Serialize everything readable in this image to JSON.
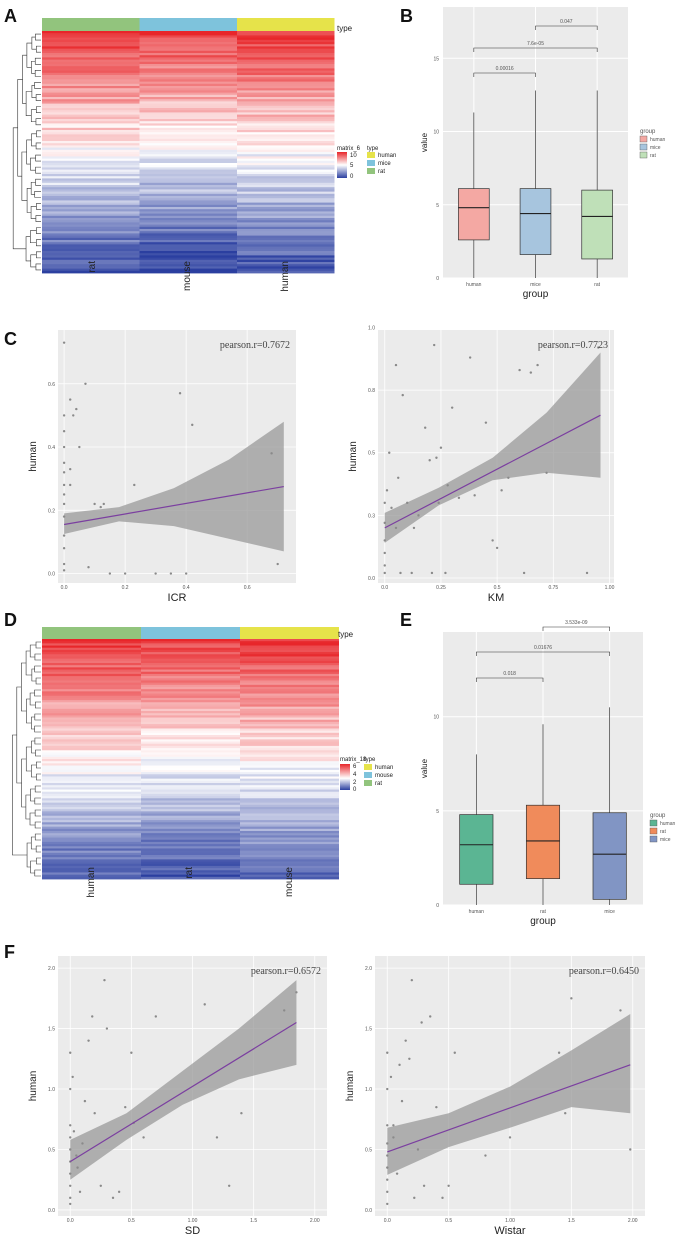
{
  "figure": {
    "panel_labels": [
      "A",
      "B",
      "C",
      "D",
      "E",
      "F"
    ]
  },
  "heatmap_A": {
    "columns": [
      "rat",
      "mouse",
      "human"
    ],
    "column_colors": [
      "#92c47d",
      "#7ec3dc",
      "#e6e34a"
    ],
    "annotation_title": "type",
    "legend_matrix_title": "matrix_6",
    "legend_ticks": [
      "10",
      "5",
      "0"
    ],
    "legend_type_title": "type",
    "legend_types": [
      {
        "label": "human",
        "color": "#e6e34a"
      },
      {
        "label": "mice",
        "color": "#7ec3dc"
      },
      {
        "label": "rat",
        "color": "#92c47d"
      }
    ]
  },
  "heatmap_D": {
    "columns": [
      "human",
      "rat",
      "mouse"
    ],
    "column_colors": [
      "#92c47d",
      "#7ec3dc",
      "#e6e34a"
    ],
    "annotation_title": "type",
    "legend_matrix_title": "matrix_18",
    "legend_ticks": [
      "6",
      "4",
      "2",
      "0"
    ],
    "legend_type_title": "type",
    "legend_types": [
      {
        "label": "human",
        "color": "#e6e34a"
      },
      {
        "label": "mouse",
        "color": "#7ec3dc"
      },
      {
        "label": "rat",
        "color": "#92c47d"
      }
    ]
  },
  "chart_data": [
    {
      "id": "B",
      "type": "box",
      "xlabel": "group",
      "ylabel": "value",
      "categories": [
        "human",
        "mice",
        "rat"
      ],
      "colors": [
        "#f4a8a3",
        "#a7c5de",
        "#bfe0b8"
      ],
      "ylim": [
        0,
        18.5
      ],
      "yticks": [
        0,
        5,
        10,
        15
      ],
      "boxes": [
        {
          "q1": 2.6,
          "median": 4.8,
          "q3": 6.1,
          "whisker_low": 0.0,
          "whisker_high": 11.3
        },
        {
          "q1": 1.6,
          "median": 4.4,
          "q3": 6.1,
          "whisker_low": 0.0,
          "whisker_high": 12.8
        },
        {
          "q1": 1.3,
          "median": 4.2,
          "q3": 6.0,
          "whisker_low": 0.0,
          "whisker_high": 12.8
        }
      ],
      "comparisons": [
        {
          "pair": [
            0,
            1
          ],
          "label": "0.00016"
        },
        {
          "pair": [
            0,
            2
          ],
          "label": "7.6e-05"
        },
        {
          "pair": [
            1,
            2
          ],
          "label": "0.047"
        }
      ],
      "legend_title": "group",
      "legend": [
        "human",
        "mice",
        "rat"
      ]
    },
    {
      "id": "C1",
      "type": "scatter",
      "xlabel": "ICR",
      "ylabel": "human",
      "annotation": "pearson.r=0.7672",
      "xlim": [
        -0.02,
        0.76
      ],
      "ylim": [
        -0.03,
        0.77
      ],
      "xticks": [
        0.0,
        0.2,
        0.4,
        0.6
      ],
      "yticks": [
        0.0,
        0.2,
        0.4,
        0.6
      ],
      "points": [
        [
          0,
          0.73
        ],
        [
          0,
          0.5
        ],
        [
          0,
          0.45
        ],
        [
          0,
          0.4
        ],
        [
          0,
          0.35
        ],
        [
          0,
          0.32
        ],
        [
          0,
          0.28
        ],
        [
          0,
          0.25
        ],
        [
          0,
          0.22
        ],
        [
          0,
          0.18
        ],
        [
          0,
          0.12
        ],
        [
          0,
          0.08
        ],
        [
          0,
          0.03
        ],
        [
          0,
          0.01
        ],
        [
          0.02,
          0.55
        ],
        [
          0.03,
          0.5
        ],
        [
          0.04,
          0.52
        ],
        [
          0.05,
          0.4
        ],
        [
          0.07,
          0.6
        ],
        [
          0.08,
          0.02
        ],
        [
          0.1,
          0.22
        ],
        [
          0.12,
          0.21
        ],
        [
          0.13,
          0.22
        ],
        [
          0.15,
          0.0
        ],
        [
          0.2,
          0.0
        ],
        [
          0.23,
          0.28
        ],
        [
          0.3,
          0.0
        ],
        [
          0.35,
          0.0
        ],
        [
          0.38,
          0.57
        ],
        [
          0.4,
          0.0
        ],
        [
          0.42,
          0.47
        ],
        [
          0.68,
          0.38
        ],
        [
          0.7,
          0.03
        ],
        [
          0.02,
          0.28
        ],
        [
          0.02,
          0.33
        ]
      ],
      "fit": {
        "x0": 0.0,
        "y0": 0.155,
        "x1": 0.72,
        "y1": 0.275
      },
      "band": {
        "upper": [
          [
            0.0,
            0.19
          ],
          [
            0.18,
            0.21
          ],
          [
            0.36,
            0.27
          ],
          [
            0.54,
            0.36
          ],
          [
            0.72,
            0.48
          ]
        ],
        "lower": [
          [
            0.0,
            0.125
          ],
          [
            0.18,
            0.165
          ],
          [
            0.36,
            0.15
          ],
          [
            0.54,
            0.11
          ],
          [
            0.72,
            0.07
          ]
        ]
      }
    },
    {
      "id": "C2",
      "type": "scatter",
      "xlabel": "KM",
      "ylabel": "human",
      "annotation": "pearson.r=0.7723",
      "xlim": [
        -0.03,
        1.02
      ],
      "ylim": [
        -0.02,
        0.99
      ],
      "xticks": [
        0.0,
        0.25,
        0.5,
        0.75,
        1.0
      ],
      "yticks": [
        0.0,
        0.25,
        0.5,
        0.75,
        1.0
      ],
      "points": [
        [
          0,
          0.3
        ],
        [
          0,
          0.22
        ],
        [
          0,
          0.15
        ],
        [
          0,
          0.1
        ],
        [
          0,
          0.05
        ],
        [
          0,
          0.02
        ],
        [
          0.01,
          0.35
        ],
        [
          0.02,
          0.5
        ],
        [
          0.03,
          0.28
        ],
        [
          0.05,
          0.2
        ],
        [
          0.05,
          0.85
        ],
        [
          0.06,
          0.4
        ],
        [
          0.07,
          0.02
        ],
        [
          0.08,
          0.73
        ],
        [
          0.1,
          0.3
        ],
        [
          0.12,
          0.02
        ],
        [
          0.13,
          0.2
        ],
        [
          0.15,
          0.25
        ],
        [
          0.18,
          0.6
        ],
        [
          0.2,
          0.47
        ],
        [
          0.21,
          0.02
        ],
        [
          0.22,
          0.93
        ],
        [
          0.23,
          0.48
        ],
        [
          0.24,
          0.3
        ],
        [
          0.25,
          0.52
        ],
        [
          0.27,
          0.02
        ],
        [
          0.28,
          0.37
        ],
        [
          0.3,
          0.68
        ],
        [
          0.33,
          0.32
        ],
        [
          0.38,
          0.88
        ],
        [
          0.4,
          0.33
        ],
        [
          0.45,
          0.62
        ],
        [
          0.48,
          0.15
        ],
        [
          0.5,
          0.12
        ],
        [
          0.52,
          0.35
        ],
        [
          0.55,
          0.4
        ],
        [
          0.6,
          0.83
        ],
        [
          0.62,
          0.02
        ],
        [
          0.65,
          0.82
        ],
        [
          0.68,
          0.85
        ],
        [
          0.72,
          0.42
        ],
        [
          0.9,
          0.02
        ],
        [
          0.95,
          0.92
        ]
      ],
      "fit": {
        "x0": 0.0,
        "y0": 0.2,
        "x1": 0.96,
        "y1": 0.65
      },
      "band": {
        "upper": [
          [
            0.0,
            0.26
          ],
          [
            0.24,
            0.36
          ],
          [
            0.48,
            0.48
          ],
          [
            0.72,
            0.66
          ],
          [
            0.96,
            0.9
          ]
        ],
        "lower": [
          [
            0.0,
            0.14
          ],
          [
            0.24,
            0.29
          ],
          [
            0.48,
            0.39
          ],
          [
            0.72,
            0.42
          ],
          [
            0.96,
            0.4
          ]
        ]
      }
    },
    {
      "id": "E",
      "type": "box",
      "xlabel": "group",
      "ylabel": "value",
      "categories": [
        "human",
        "rat",
        "mice"
      ],
      "colors": [
        "#5bb593",
        "#f08b5b",
        "#8195c4"
      ],
      "ylim": [
        0,
        14.5
      ],
      "yticks": [
        0,
        5,
        10
      ],
      "boxes": [
        {
          "q1": 1.1,
          "median": 3.2,
          "q3": 4.8,
          "whisker_low": 0.0,
          "whisker_high": 8.0
        },
        {
          "q1": 1.4,
          "median": 3.4,
          "q3": 5.3,
          "whisker_low": 0.0,
          "whisker_high": 9.6
        },
        {
          "q1": 0.3,
          "median": 2.7,
          "q3": 4.9,
          "whisker_low": 0.0,
          "whisker_high": 10.5
        }
      ],
      "comparisons": [
        {
          "pair": [
            0,
            1
          ],
          "label": "0.018"
        },
        {
          "pair": [
            0,
            2
          ],
          "label": "0.01676"
        },
        {
          "pair": [
            1,
            2
          ],
          "label": "3.533e-09"
        }
      ],
      "legend_title": "group",
      "legend": [
        "human",
        "rat",
        "mice"
      ]
    },
    {
      "id": "F1",
      "type": "scatter",
      "xlabel": "SD",
      "ylabel": "human",
      "annotation": "pearson.r=0.6572",
      "xlim": [
        -0.1,
        2.1
      ],
      "ylim": [
        -0.05,
        2.1
      ],
      "xticks": [
        0.0,
        0.5,
        1.0,
        1.5,
        2.0
      ],
      "yticks": [
        0.0,
        0.5,
        1.0,
        1.5,
        2.0
      ],
      "points": [
        [
          0,
          1.3
        ],
        [
          0,
          1.0
        ],
        [
          0,
          0.7
        ],
        [
          0,
          0.6
        ],
        [
          0,
          0.5
        ],
        [
          0,
          0.4
        ],
        [
          0,
          0.3
        ],
        [
          0,
          0.2
        ],
        [
          0,
          0.1
        ],
        [
          0,
          0.05
        ],
        [
          0.02,
          1.1
        ],
        [
          0.03,
          0.65
        ],
        [
          0.05,
          0.45
        ],
        [
          0.06,
          0.35
        ],
        [
          0.08,
          0.15
        ],
        [
          0.1,
          0.55
        ],
        [
          0.12,
          0.9
        ],
        [
          0.15,
          1.4
        ],
        [
          0.18,
          1.6
        ],
        [
          0.2,
          0.8
        ],
        [
          0.25,
          0.2
        ],
        [
          0.28,
          1.9
        ],
        [
          0.3,
          1.5
        ],
        [
          0.35,
          0.1
        ],
        [
          0.4,
          0.15
        ],
        [
          0.45,
          0.85
        ],
        [
          0.5,
          1.3
        ],
        [
          0.52,
          0.72
        ],
        [
          0.6,
          0.6
        ],
        [
          0.7,
          1.6
        ],
        [
          1.1,
          1.7
        ],
        [
          1.2,
          0.6
        ],
        [
          1.3,
          0.2
        ],
        [
          1.4,
          0.8
        ],
        [
          1.75,
          1.65
        ],
        [
          1.85,
          1.8
        ]
      ],
      "fit": {
        "x0": 0.0,
        "y0": 0.4,
        "x1": 1.85,
        "y1": 1.55
      },
      "band": {
        "upper": [
          [
            0.0,
            0.58
          ],
          [
            0.46,
            0.8
          ],
          [
            0.92,
            1.15
          ],
          [
            1.38,
            1.5
          ],
          [
            1.85,
            1.9
          ]
        ],
        "lower": [
          [
            0.0,
            0.25
          ],
          [
            0.46,
            0.58
          ],
          [
            0.92,
            0.87
          ],
          [
            1.38,
            1.08
          ],
          [
            1.85,
            1.2
          ]
        ]
      }
    },
    {
      "id": "F2",
      "type": "scatter",
      "xlabel": "Wistar",
      "ylabel": "human",
      "annotation": "pearson.r=0.6450",
      "xlim": [
        -0.1,
        2.1
      ],
      "ylim": [
        -0.05,
        2.1
      ],
      "xticks": [
        0.0,
        0.5,
        1.0,
        1.5,
        2.0
      ],
      "yticks": [
        0.0,
        0.5,
        1.0,
        1.5,
        2.0
      ],
      "points": [
        [
          0,
          1.3
        ],
        [
          0,
          1.0
        ],
        [
          0,
          0.7
        ],
        [
          0,
          0.55
        ],
        [
          0,
          0.45
        ],
        [
          0,
          0.35
        ],
        [
          0,
          0.25
        ],
        [
          0,
          0.15
        ],
        [
          0,
          0.05
        ],
        [
          0.03,
          1.1
        ],
        [
          0.05,
          0.6
        ],
        [
          0.08,
          0.3
        ],
        [
          0.1,
          1.2
        ],
        [
          0.12,
          0.9
        ],
        [
          0.15,
          1.4
        ],
        [
          0.18,
          1.25
        ],
        [
          0.2,
          1.9
        ],
        [
          0.22,
          0.1
        ],
        [
          0.25,
          0.5
        ],
        [
          0.28,
          1.55
        ],
        [
          0.3,
          0.2
        ],
        [
          0.35,
          1.6
        ],
        [
          0.4,
          0.85
        ],
        [
          0.45,
          0.1
        ],
        [
          0.5,
          0.2
        ],
        [
          0.55,
          1.3
        ],
        [
          0.8,
          0.45
        ],
        [
          1.0,
          0.6
        ],
        [
          1.4,
          1.3
        ],
        [
          1.45,
          0.8
        ],
        [
          1.5,
          1.75
        ],
        [
          1.9,
          1.65
        ],
        [
          1.98,
          0.5
        ],
        [
          0.05,
          0.7
        ]
      ],
      "fit": {
        "x0": 0.0,
        "y0": 0.48,
        "x1": 1.98,
        "y1": 1.2
      },
      "band": {
        "upper": [
          [
            0.0,
            0.68
          ],
          [
            0.5,
            0.8
          ],
          [
            1.0,
            1.02
          ],
          [
            1.5,
            1.32
          ],
          [
            1.98,
            1.62
          ]
        ],
        "lower": [
          [
            0.0,
            0.29
          ],
          [
            0.5,
            0.52
          ],
          [
            1.0,
            0.68
          ],
          [
            1.5,
            0.85
          ],
          [
            1.98,
            0.8
          ]
        ]
      }
    }
  ]
}
